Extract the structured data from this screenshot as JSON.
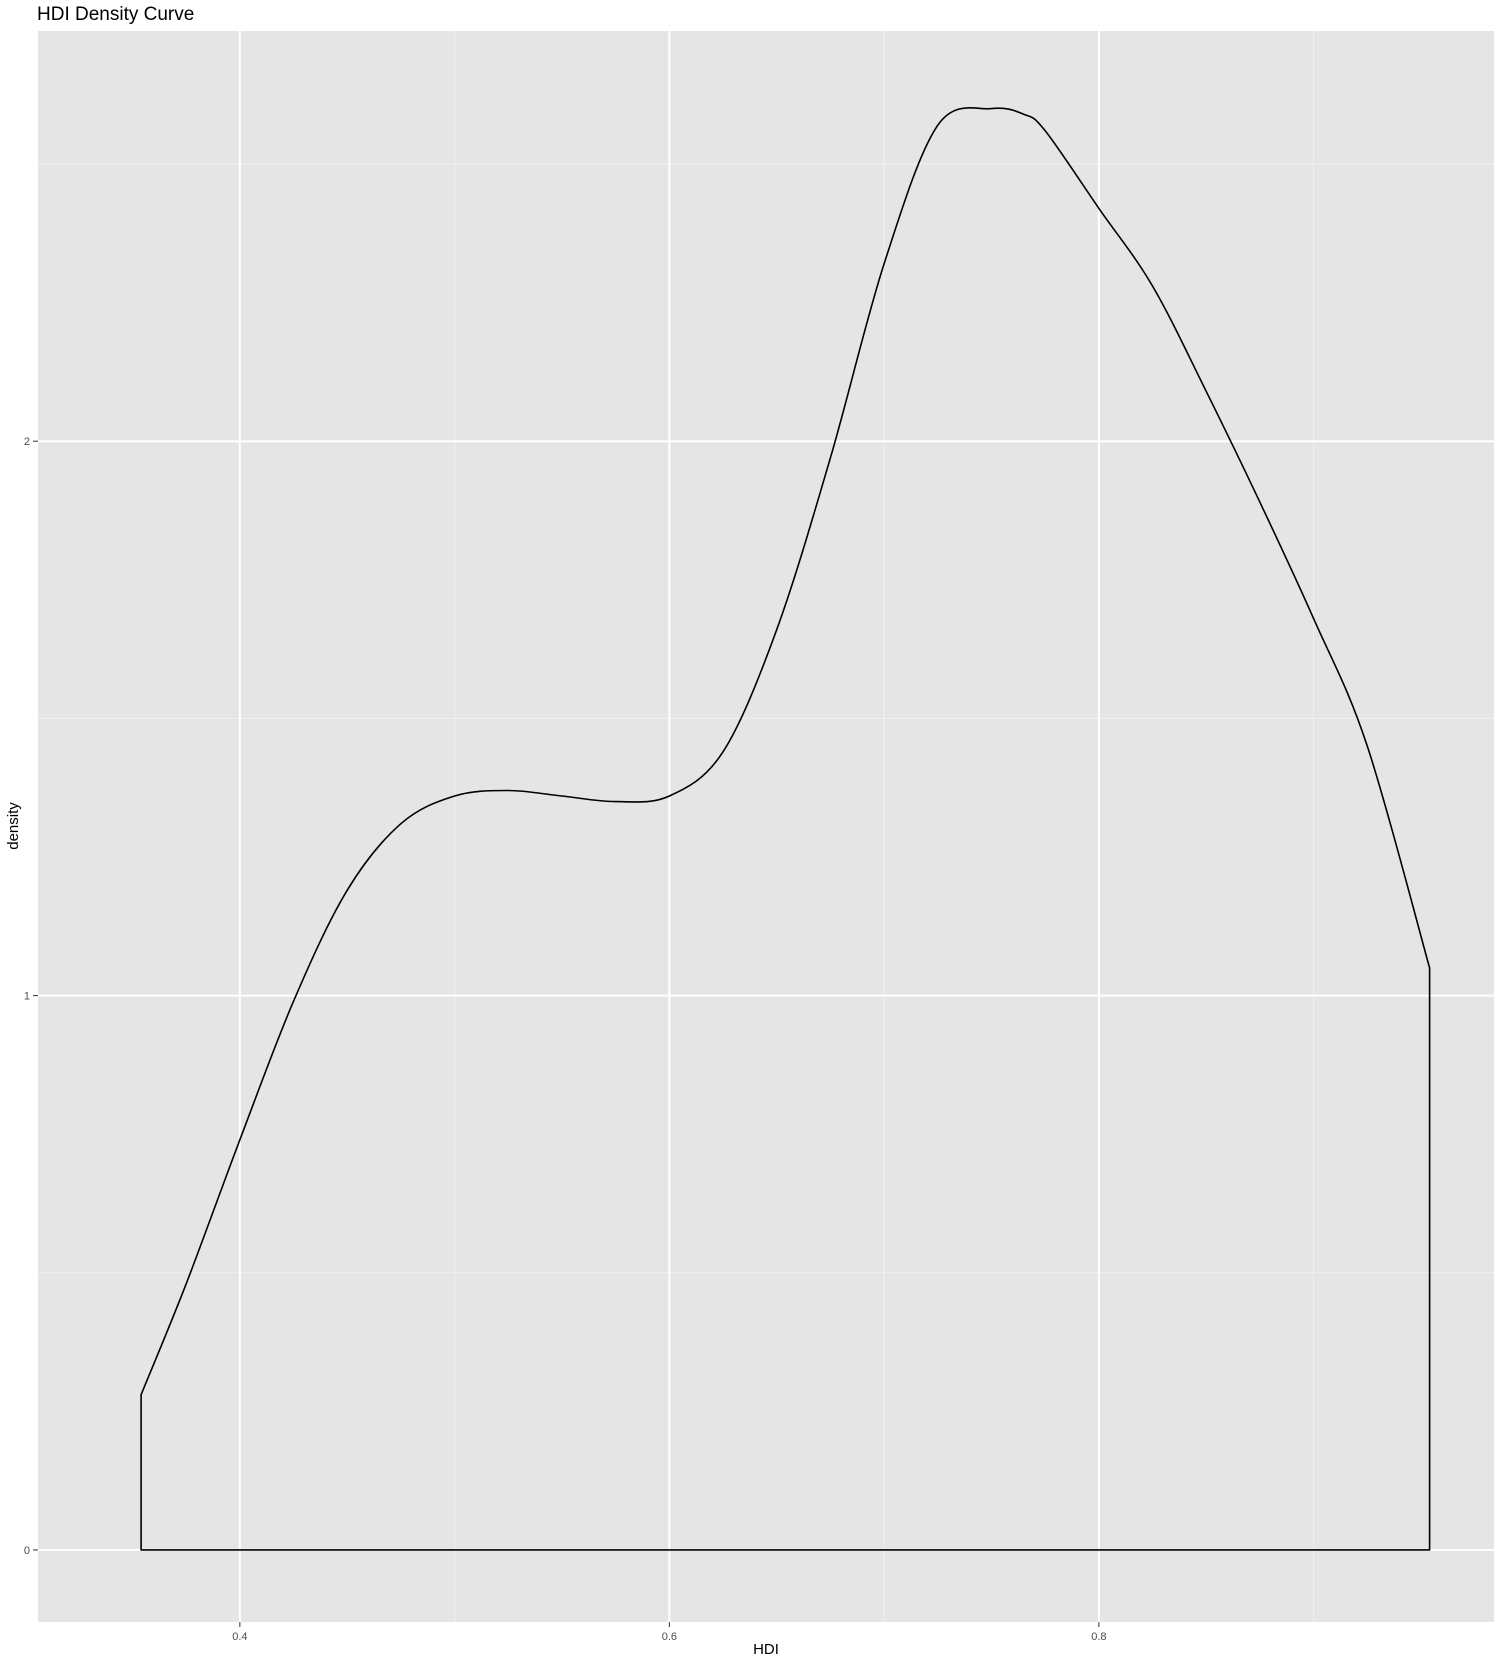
{
  "chart_data": {
    "type": "line",
    "title": "HDI Density Curve",
    "xlabel": "HDI",
    "ylabel": "density",
    "xlim": [
      0.306,
      0.984
    ],
    "ylim": [
      -0.13,
      2.74
    ],
    "x_ticks": [
      0.4,
      0.6,
      0.8
    ],
    "x_tick_labels": [
      "0.4",
      "0.6",
      "0.8"
    ],
    "x_minor_ticks": [
      0.5,
      0.7,
      0.9
    ],
    "y_ticks": [
      0,
      1,
      2
    ],
    "y_tick_labels": [
      "0",
      "1",
      "2"
    ],
    "y_minor_ticks": [
      0.5,
      1.5,
      2.5
    ],
    "grid": true,
    "legend": "none",
    "series": [
      {
        "color": "#000000",
        "fill": "none",
        "x": [
          0.354,
          0.354,
          0.375,
          0.4,
          0.425,
          0.45,
          0.475,
          0.5,
          0.525,
          0.55,
          0.575,
          0.6,
          0.625,
          0.65,
          0.675,
          0.7,
          0.725,
          0.75,
          0.765,
          0.775,
          0.8,
          0.825,
          0.85,
          0.875,
          0.9,
          0.925,
          0.954,
          0.954,
          0.354
        ],
        "y": [
          0.0,
          0.28,
          0.48,
          0.74,
          0.99,
          1.19,
          1.31,
          1.36,
          1.37,
          1.36,
          1.35,
          1.36,
          1.44,
          1.66,
          1.97,
          2.32,
          2.57,
          2.6,
          2.59,
          2.56,
          2.42,
          2.28,
          2.09,
          1.89,
          1.68,
          1.45,
          1.05,
          0.0,
          0.0
        ]
      }
    ]
  },
  "colors": {
    "panel_background": "#e5e5e5",
    "grid_major": "#ffffff",
    "grid_minor": "#f2f2f2",
    "tick_label": "#4d4d4d",
    "line": "#000000"
  }
}
